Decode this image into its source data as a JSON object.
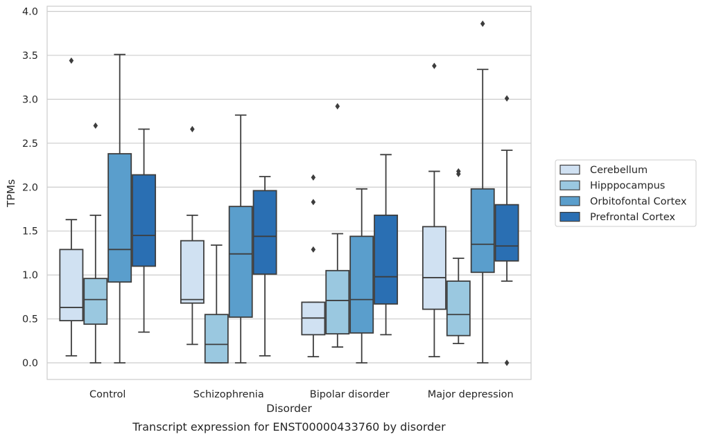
{
  "chart_data": {
    "type": "boxplot",
    "caption": "Transcript expression for ENST00000433760 by disorder",
    "xlabel": "Disorder",
    "ylabel": "TPMs",
    "ylim": [
      -0.18,
      4.05
    ],
    "yticks": [
      "0.0",
      "0.5",
      "1.0",
      "1.5",
      "2.0",
      "2.5",
      "3.0",
      "3.5",
      "4.0"
    ],
    "grid": true,
    "legend_position": "right",
    "categories": [
      "Control",
      "Schizophrenia",
      "Bipolar disorder",
      "Major depression"
    ],
    "series": [
      {
        "name": "Cerebellum",
        "color": "#d0e1f2",
        "boxes": [
          {
            "whisker_low": 0.08,
            "q1": 0.48,
            "median": 0.63,
            "q3": 1.29,
            "whisker_high": 1.63,
            "outliers": [
              3.44
            ]
          },
          {
            "whisker_low": 0.21,
            "q1": 0.68,
            "median": 0.72,
            "q3": 1.39,
            "whisker_high": 1.68,
            "outliers": [
              2.66
            ]
          },
          {
            "whisker_low": 0.07,
            "q1": 0.32,
            "median": 0.51,
            "q3": 0.69,
            "whisker_high": 0.69,
            "outliers": [
              2.11,
              1.83,
              1.29
            ]
          },
          {
            "whisker_low": 0.07,
            "q1": 0.61,
            "median": 0.97,
            "q3": 1.55,
            "whisker_high": 2.18,
            "outliers": [
              3.38
            ]
          }
        ]
      },
      {
        "name": "Hipppocampus",
        "color": "#9ac8e0",
        "boxes": [
          {
            "whisker_low": 0.0,
            "q1": 0.44,
            "median": 0.72,
            "q3": 0.96,
            "whisker_high": 1.68,
            "outliers": [
              2.7
            ]
          },
          {
            "whisker_low": 0.0,
            "q1": 0.0,
            "median": 0.21,
            "q3": 0.55,
            "whisker_high": 1.34,
            "outliers": []
          },
          {
            "whisker_low": 0.18,
            "q1": 0.33,
            "median": 0.71,
            "q3": 1.05,
            "whisker_high": 1.47,
            "outliers": [
              2.92
            ]
          },
          {
            "whisker_low": 0.22,
            "q1": 0.31,
            "median": 0.55,
            "q3": 0.93,
            "whisker_high": 1.19,
            "outliers": [
              2.18,
              2.15
            ]
          }
        ]
      },
      {
        "name": "Orbitofontal Cortex",
        "color": "#5a9ecc",
        "boxes": [
          {
            "whisker_low": 0.0,
            "q1": 0.92,
            "median": 1.29,
            "q3": 2.38,
            "whisker_high": 3.51,
            "outliers": []
          },
          {
            "whisker_low": 0.0,
            "q1": 0.52,
            "median": 1.24,
            "q3": 1.78,
            "whisker_high": 2.82,
            "outliers": []
          },
          {
            "whisker_low": 0.0,
            "q1": 0.34,
            "median": 0.72,
            "q3": 1.44,
            "whisker_high": 1.98,
            "outliers": []
          },
          {
            "whisker_low": 0.0,
            "q1": 1.03,
            "median": 1.35,
            "q3": 1.98,
            "whisker_high": 3.34,
            "outliers": [
              3.86
            ]
          }
        ]
      },
      {
        "name": "Prefrontal Cortex",
        "color": "#2a6fb3",
        "boxes": [
          {
            "whisker_low": 0.35,
            "q1": 1.1,
            "median": 1.45,
            "q3": 2.14,
            "whisker_high": 2.66,
            "outliers": []
          },
          {
            "whisker_low": 0.08,
            "q1": 1.01,
            "median": 1.44,
            "q3": 1.96,
            "whisker_high": 2.12,
            "outliers": []
          },
          {
            "whisker_low": 0.32,
            "q1": 0.67,
            "median": 0.98,
            "q3": 1.68,
            "whisker_high": 2.37,
            "outliers": []
          },
          {
            "whisker_low": 0.93,
            "q1": 1.16,
            "median": 1.33,
            "q3": 1.8,
            "whisker_high": 2.42,
            "outliers": [
              3.01,
              0.0
            ]
          }
        ]
      }
    ]
  }
}
